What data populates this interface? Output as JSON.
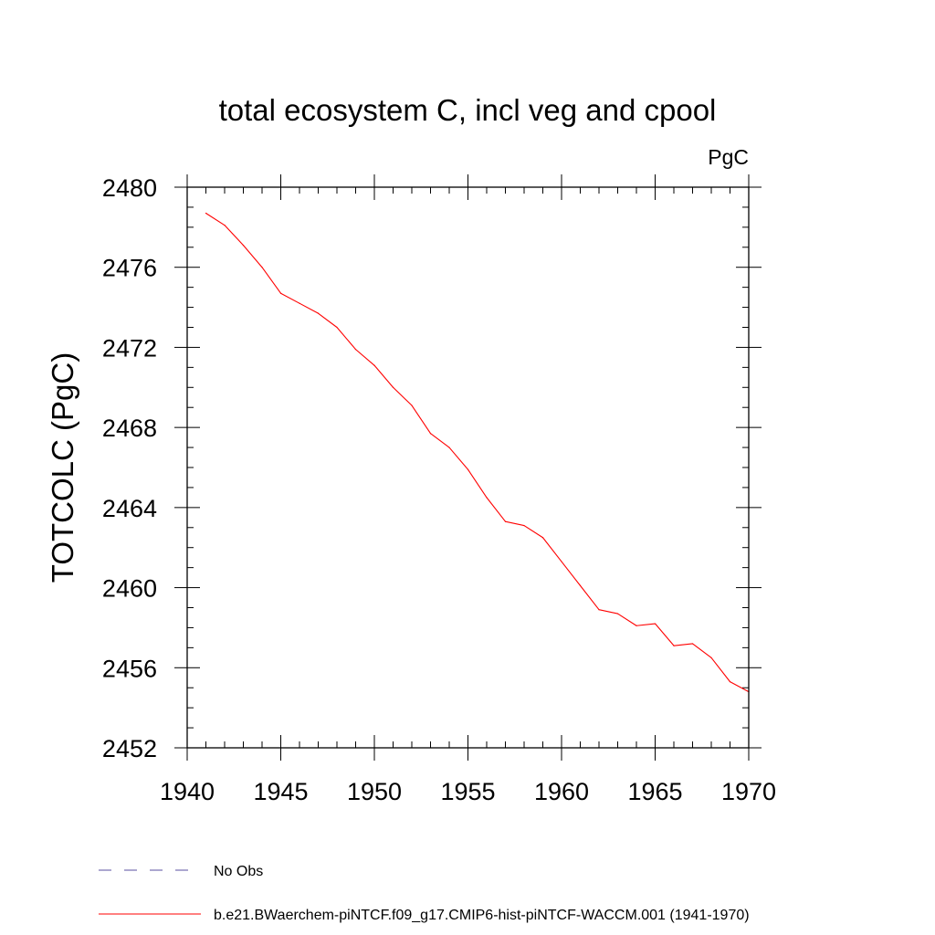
{
  "chart_data": {
    "type": "line",
    "title": "total ecosystem C, incl veg and cpool",
    "units_label": "PgC",
    "xlabel": "",
    "ylabel": "TOTCOLC  (PgC)",
    "xlim": [
      1940,
      1970
    ],
    "ylim": [
      2452,
      2480
    ],
    "x_ticks": [
      1940,
      1945,
      1950,
      1955,
      1960,
      1965,
      1970
    ],
    "y_ticks": [
      2452,
      2456,
      2460,
      2464,
      2468,
      2472,
      2476,
      2480
    ],
    "grid": false,
    "legend_position": "bottom-left",
    "series": [
      {
        "name": "No Obs",
        "color": "#5a4fa0",
        "dash": "dashed",
        "x": [],
        "y": []
      },
      {
        "name": "b.e21.BWaerchem-piNTCF.f09_g17.CMIP6-hist-piNTCF-WACCM.001 (1941-1970)",
        "color": "#ff0000",
        "dash": "solid",
        "x": [
          1941,
          1942,
          1943,
          1944,
          1945,
          1946,
          1947,
          1948,
          1949,
          1950,
          1951,
          1952,
          1953,
          1954,
          1955,
          1956,
          1957,
          1958,
          1959,
          1960,
          1961,
          1962,
          1963,
          1964,
          1965,
          1966,
          1967,
          1968,
          1969,
          1970
        ],
        "y": [
          2478.7,
          2478.1,
          2477.1,
          2476.0,
          2474.7,
          2474.2,
          2473.7,
          2473.0,
          2471.9,
          2471.1,
          2470.0,
          2469.1,
          2467.7,
          2467.0,
          2465.9,
          2464.5,
          2463.3,
          2463.1,
          2462.5,
          2461.3,
          2460.1,
          2458.9,
          2458.7,
          2458.1,
          2458.2,
          2457.1,
          2457.2,
          2456.5,
          2455.3,
          2454.8
        ]
      }
    ]
  }
}
